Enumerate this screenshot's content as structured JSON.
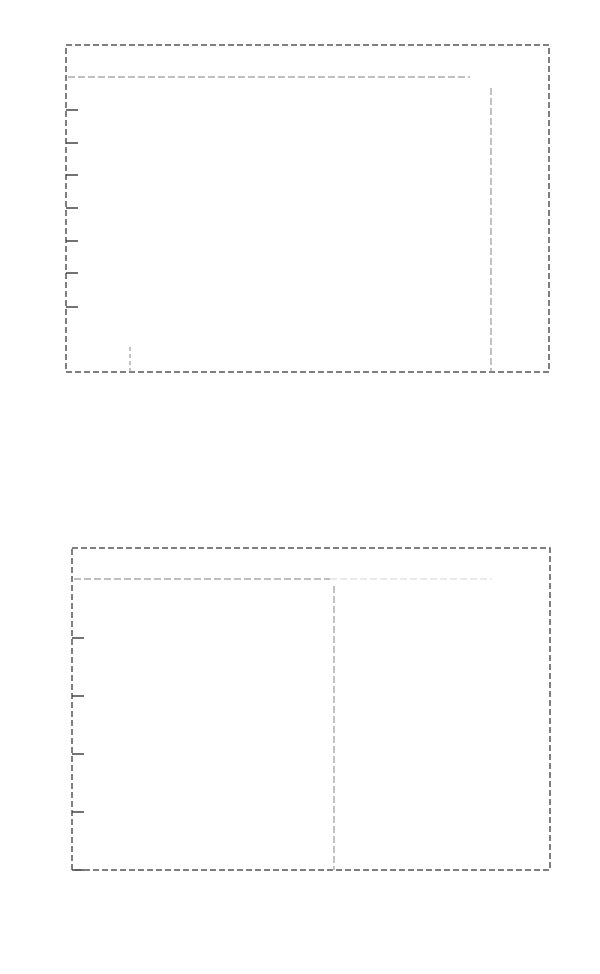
{
  "colors": {
    "frame": "#555555",
    "guide": "#9a9a9a",
    "faint_guide": "#dddddd",
    "tick": "#444444",
    "background": "#ffffff"
  },
  "panels": [
    {
      "name": "top-panel",
      "tick_count": 7,
      "guide_count": 3
    },
    {
      "name": "bottom-panel",
      "tick_count": 5,
      "guide_count": 3
    }
  ]
}
